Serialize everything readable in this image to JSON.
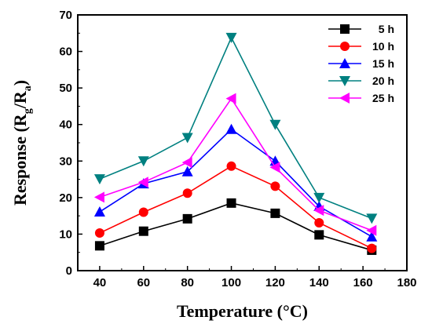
{
  "chart_data": {
    "type": "line",
    "title": "",
    "xlabel": "Temperature (°C)",
    "ylabel_parts": {
      "main": "Response (R",
      "sub1": "g",
      "mid": "/R",
      "sub2": "a",
      "end": ")"
    },
    "xlim": [
      30,
      180
    ],
    "ylim": [
      0,
      70
    ],
    "xticks": [
      40,
      60,
      80,
      100,
      120,
      140,
      160,
      180
    ],
    "yticks": [
      0,
      10,
      20,
      30,
      40,
      50,
      60,
      70
    ],
    "grid": false,
    "legend_position": "top-right",
    "x": [
      40,
      60,
      80,
      100,
      120,
      140,
      164
    ],
    "series": [
      {
        "name": "5 h",
        "color": "#000000",
        "marker": "square",
        "values": [
          6.8,
          10.8,
          14.2,
          18.5,
          15.7,
          9.8,
          5.6
        ]
      },
      {
        "name": "10 h",
        "color": "#ff0000",
        "marker": "circle",
        "values": [
          10.3,
          16.0,
          21.2,
          28.6,
          23.1,
          13.1,
          6.1
        ]
      },
      {
        "name": "15 h",
        "color": "#0000ff",
        "marker": "triangle-up",
        "values": [
          16.1,
          23.8,
          27.1,
          38.7,
          30.0,
          17.6,
          9.3
        ]
      },
      {
        "name": "20 h",
        "color": "#008080",
        "marker": "triangle-down",
        "values": [
          25.1,
          30.0,
          36.4,
          63.8,
          40.0,
          20.0,
          14.3
        ]
      },
      {
        "name": "25 h",
        "color": "#ff00ff",
        "marker": "triangle-left",
        "values": [
          20.1,
          24.2,
          29.6,
          47.1,
          28.3,
          16.5,
          11.0
        ]
      }
    ]
  }
}
